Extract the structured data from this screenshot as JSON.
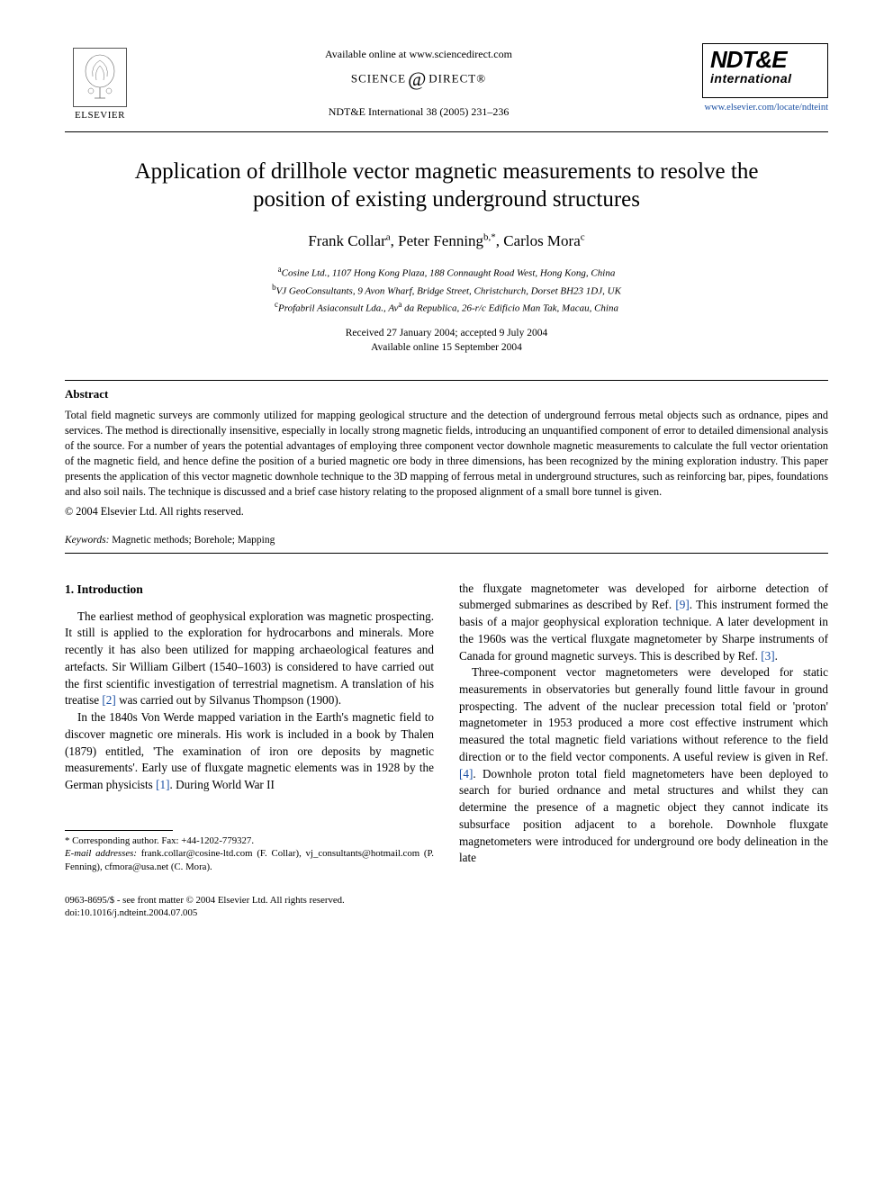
{
  "header": {
    "publisher_name": "ELSEVIER",
    "available_text": "Available online at www.sciencedirect.com",
    "science_direct_left": "SCIENCE",
    "science_direct_right": "DIRECT®",
    "journal_reference": "NDT&E International 38 (2005) 231–236",
    "journal_logo_big": "NDT&E",
    "journal_logo_small": "international",
    "journal_url": "www.elsevier.com/locate/ndteint"
  },
  "title": "Application of drillhole vector magnetic measurements to resolve the position of existing underground structures",
  "authors_html": "Frank Collar<sup>a</sup>, Peter Fenning<sup>b,*</sup>, Carlos Mora<sup>c</sup>",
  "affiliations": [
    "<sup>a</sup>Cosine Ltd., 1107 Hong Kong Plaza, 188 Connaught Road West, Hong Kong, China",
    "<sup>b</sup>VJ GeoConsultants, 9 Avon Wharf, Bridge Street, Christchurch, Dorset BH23 1DJ, UK",
    "<sup>c</sup>Profabril Asiaconsult Lda., Av<sup>a</sup> da Republica, 26-r/c Edificio Man Tak, Macau, China"
  ],
  "dates": {
    "received_accepted": "Received 27 January 2004; accepted 9 July 2004",
    "available_online": "Available online 15 September 2004"
  },
  "abstract": {
    "heading": "Abstract",
    "body": "Total field magnetic surveys are commonly utilized for mapping geological structure and the detection of underground ferrous metal objects such as ordnance, pipes and services. The method is directionally insensitive, especially in locally strong magnetic fields, introducing an unquantified component of error to detailed dimensional analysis of the source. For a number of years the potential advantages of employing three component vector downhole magnetic measurements to calculate the full vector orientation of the magnetic field, and hence define the position of a buried magnetic ore body in three dimensions, has been recognized by the mining exploration industry. This paper presents the application of this vector magnetic downhole technique to the 3D mapping of ferrous metal in underground structures, such as reinforcing bar, pipes, foundations and also soil nails. The technique is discussed and a brief case history relating to the proposed alignment of a small bore tunnel is given.",
    "copyright": "© 2004 Elsevier Ltd. All rights reserved."
  },
  "keywords": {
    "label": "Keywords:",
    "text": " Magnetic methods; Borehole; Mapping"
  },
  "section1": {
    "heading": "1. Introduction",
    "paragraphs_left": [
      "The earliest method of geophysical exploration was magnetic prospecting. It still is applied to the exploration for hydrocarbons and minerals. More recently it has also been utilized for mapping archaeological features and artefacts. Sir William Gilbert (1540–1603) is considered to have carried out the first scientific investigation of terrestrial magnetism. A translation of his treatise <span class=\"ref-link\">[2]</span> was carried out by Silvanus Thompson (1900).",
      "In the 1840s Von Werde mapped variation in the Earth's magnetic field to discover magnetic ore minerals. His work is included in a book by Thalen (1879) entitled, 'The examination of iron ore deposits by magnetic measurements'. Early use of fluxgate magnetic elements was in 1928 by the German physicists <span class=\"ref-link\">[1]</span>. During World War II"
    ],
    "paragraphs_right": [
      "the fluxgate magnetometer was developed for airborne detection of submerged submarines as described by Ref. <span class=\"ref-link\">[9]</span>. This instrument formed the basis of a major geophysical exploration technique. A later development in the 1960s was the vertical fluxgate magnetometer by Sharpe instruments of Canada for ground magnetic surveys. This is described by Ref. <span class=\"ref-link\">[3]</span>.",
      "Three-component vector magnetometers were developed for static measurements in observatories but generally found little favour in ground prospecting. The advent of the nuclear precession total field or 'proton' magnetometer in 1953 produced a more cost effective instrument which measured the total magnetic field variations without reference to the field direction or to the field vector components. A useful review is given in Ref. <span class=\"ref-link\">[4]</span>. Downhole proton total field magnetometers have been deployed to search for buried ordnance and metal structures and whilst they can determine the presence of a magnetic object they cannot indicate its subsurface position adjacent to a borehole. Downhole fluxgate magnetometers were introduced for underground ore body delineation in the late"
    ]
  },
  "footnotes": {
    "corresponding": "* Corresponding author. Fax: +44-1202-779327.",
    "email_label": "E-mail addresses:",
    "emails": " frank.collar@cosine-ltd.com (F. Collar), vj_consultants@hotmail.com (P. Fenning), cfmora@usa.net (C. Mora)."
  },
  "bottom": {
    "issn_line": "0963-8695/$ - see front matter © 2004 Elsevier Ltd. All rights reserved.",
    "doi_line": "doi:10.1016/j.ndteint.2004.07.005"
  },
  "colors": {
    "link": "#1a4fa3",
    "text": "#000000",
    "background": "#ffffff"
  }
}
